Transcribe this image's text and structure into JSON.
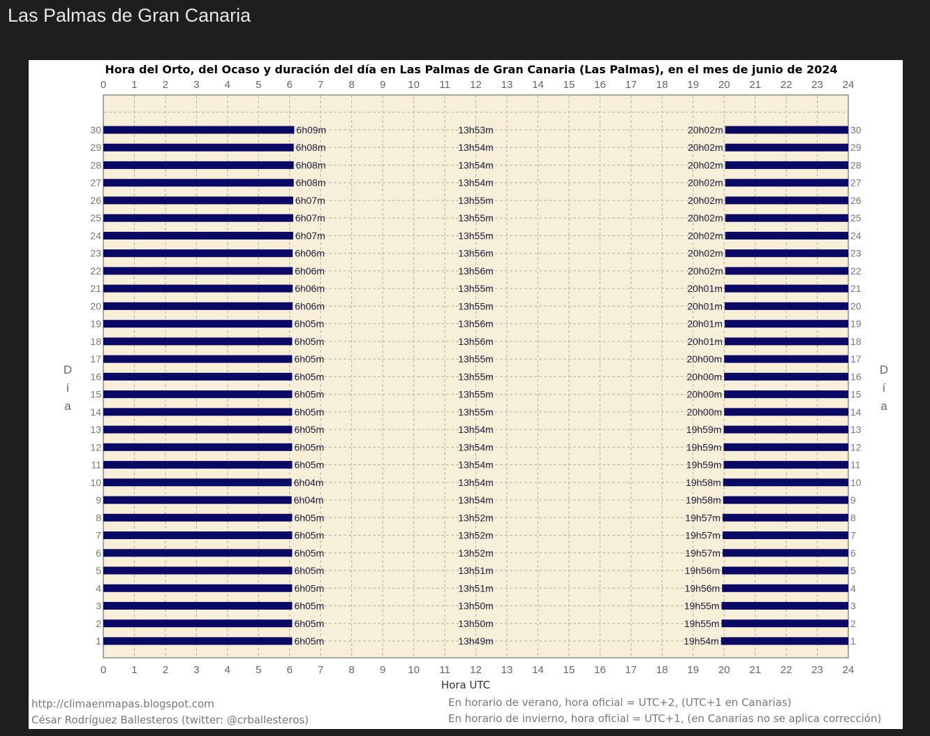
{
  "page": {
    "title": "Las Palmas de Gran Canaria"
  },
  "chart_data": {
    "type": "bar",
    "title": "Hora del Orto, del Ocaso y duración del día en Las Palmas de Gran Canaria (Las Palmas), en el mes de junio de 2024",
    "xlabel": "Hora UTC",
    "ylabel_left": "Día",
    "ylabel_right": "Día",
    "xlim": [
      0,
      24
    ],
    "ylim": [
      1,
      30
    ],
    "x_ticks": [
      "0",
      "1",
      "2",
      "3",
      "4",
      "5",
      "6",
      "7",
      "8",
      "9",
      "10",
      "11",
      "12",
      "13",
      "14",
      "15",
      "16",
      "17",
      "18",
      "19",
      "20",
      "21",
      "22",
      "23",
      "24"
    ],
    "grid": true,
    "colors": {
      "night_bar": "#0a0a66",
      "plot_bg": "#f7efd7",
      "grid": "#b8b2a0"
    },
    "days": [
      {
        "day": "1",
        "sunrise": "6h05m",
        "duration": "13h49m",
        "sunset": "19h54m"
      },
      {
        "day": "2",
        "sunrise": "6h05m",
        "duration": "13h50m",
        "sunset": "19h55m"
      },
      {
        "day": "3",
        "sunrise": "6h05m",
        "duration": "13h50m",
        "sunset": "19h55m"
      },
      {
        "day": "4",
        "sunrise": "6h05m",
        "duration": "13h51m",
        "sunset": "19h56m"
      },
      {
        "day": "5",
        "sunrise": "6h05m",
        "duration": "13h51m",
        "sunset": "19h56m"
      },
      {
        "day": "6",
        "sunrise": "6h05m",
        "duration": "13h52m",
        "sunset": "19h57m"
      },
      {
        "day": "7",
        "sunrise": "6h05m",
        "duration": "13h52m",
        "sunset": "19h57m"
      },
      {
        "day": "8",
        "sunrise": "6h05m",
        "duration": "13h52m",
        "sunset": "19h57m"
      },
      {
        "day": "9",
        "sunrise": "6h04m",
        "duration": "13h54m",
        "sunset": "19h58m"
      },
      {
        "day": "10",
        "sunrise": "6h04m",
        "duration": "13h54m",
        "sunset": "19h58m"
      },
      {
        "day": "11",
        "sunrise": "6h05m",
        "duration": "13h54m",
        "sunset": "19h59m"
      },
      {
        "day": "12",
        "sunrise": "6h05m",
        "duration": "13h54m",
        "sunset": "19h59m"
      },
      {
        "day": "13",
        "sunrise": "6h05m",
        "duration": "13h54m",
        "sunset": "19h59m"
      },
      {
        "day": "14",
        "sunrise": "6h05m",
        "duration": "13h55m",
        "sunset": "20h00m"
      },
      {
        "day": "15",
        "sunrise": "6h05m",
        "duration": "13h55m",
        "sunset": "20h00m"
      },
      {
        "day": "16",
        "sunrise": "6h05m",
        "duration": "13h55m",
        "sunset": "20h00m"
      },
      {
        "day": "17",
        "sunrise": "6h05m",
        "duration": "13h55m",
        "sunset": "20h00m"
      },
      {
        "day": "18",
        "sunrise": "6h05m",
        "duration": "13h56m",
        "sunset": "20h01m"
      },
      {
        "day": "19",
        "sunrise": "6h05m",
        "duration": "13h56m",
        "sunset": "20h01m"
      },
      {
        "day": "20",
        "sunrise": "6h06m",
        "duration": "13h55m",
        "sunset": "20h01m"
      },
      {
        "day": "21",
        "sunrise": "6h06m",
        "duration": "13h55m",
        "sunset": "20h01m"
      },
      {
        "day": "22",
        "sunrise": "6h06m",
        "duration": "13h56m",
        "sunset": "20h02m"
      },
      {
        "day": "23",
        "sunrise": "6h06m",
        "duration": "13h56m",
        "sunset": "20h02m"
      },
      {
        "day": "24",
        "sunrise": "6h07m",
        "duration": "13h55m",
        "sunset": "20h02m"
      },
      {
        "day": "25",
        "sunrise": "6h07m",
        "duration": "13h55m",
        "sunset": "20h02m"
      },
      {
        "day": "26",
        "sunrise": "6h07m",
        "duration": "13h55m",
        "sunset": "20h02m"
      },
      {
        "day": "27",
        "sunrise": "6h08m",
        "duration": "13h54m",
        "sunset": "20h02m"
      },
      {
        "day": "28",
        "sunrise": "6h08m",
        "duration": "13h54m",
        "sunset": "20h02m"
      },
      {
        "day": "29",
        "sunrise": "6h08m",
        "duration": "13h54m",
        "sunset": "20h02m"
      },
      {
        "day": "30",
        "sunrise": "6h09m",
        "duration": "13h53m",
        "sunset": "20h02m"
      }
    ]
  },
  "footer": {
    "source_url": "http://climaenmapas.blogspot.com",
    "author": "César Rodríguez Ballesteros (twitter: @crballesteros)",
    "note_summer": "En horario de verano, hora oficial = UTC+2, (UTC+1 en Canarias)",
    "note_winter": "En horario de invierno, hora oficial = UTC+1, (en Canarias no se aplica corrección)"
  }
}
